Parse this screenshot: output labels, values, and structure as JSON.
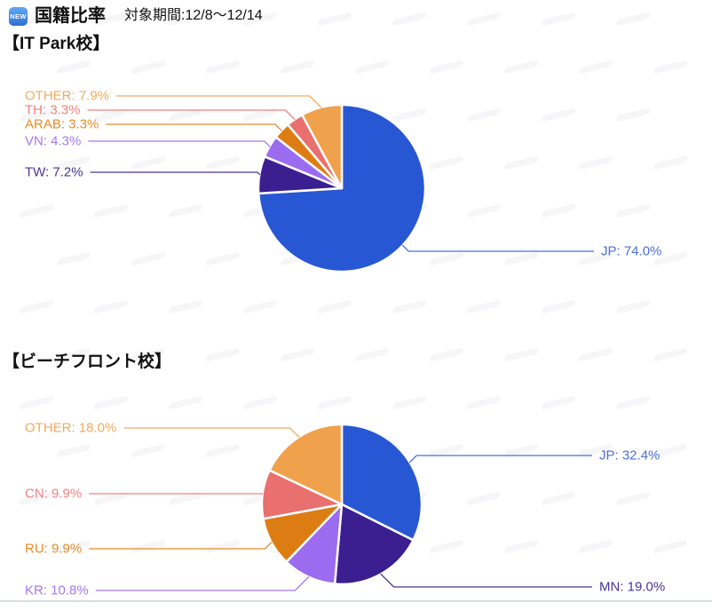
{
  "page": {
    "header": {
      "badge": "NEW",
      "title": "国籍比率",
      "period": "対象期間:12/8～12/14"
    }
  },
  "chart_data": [
    {
      "type": "pie",
      "title": "【IT Park校】",
      "unit": "%",
      "start_angle_deg": 0,
      "direction": "clockwise",
      "legend_position": "outside-callouts",
      "slices": [
        {
          "label": "JP",
          "value": 74.0,
          "color": "#2857d4",
          "label_color": "#4a6fd8"
        },
        {
          "label": "TW",
          "value": 7.2,
          "color": "#3b1e8f",
          "label_color": "#4a3598"
        },
        {
          "label": "VN",
          "value": 4.3,
          "color": "#9c6cf0",
          "label_color": "#a478f2"
        },
        {
          "label": "ARAB",
          "value": 3.3,
          "color": "#de7c14",
          "label_color": "#e78b28"
        },
        {
          "label": "TH",
          "value": 3.3,
          "color": "#ea6f6f",
          "label_color": "#ef827f"
        },
        {
          "label": "OTHER",
          "value": 7.9,
          "color": "#f0a14c",
          "label_color": "#f2aa5e"
        }
      ]
    },
    {
      "type": "pie",
      "title": "【ビーチフロント校】",
      "unit": "%",
      "start_angle_deg": 0,
      "direction": "clockwise",
      "legend_position": "outside-callouts",
      "slices": [
        {
          "label": "JP",
          "value": 32.4,
          "color": "#2857d4",
          "label_color": "#4a6fd8"
        },
        {
          "label": "MN",
          "value": 19.0,
          "color": "#3b1e8f",
          "label_color": "#4a3598"
        },
        {
          "label": "KR",
          "value": 10.8,
          "color": "#9c6cf0",
          "label_color": "#a478f2"
        },
        {
          "label": "RU",
          "value": 9.9,
          "color": "#de7c14",
          "label_color": "#e78b28"
        },
        {
          "label": "CN",
          "value": 9.9,
          "color": "#ea6f6f",
          "label_color": "#ef827f"
        },
        {
          "label": "OTHER",
          "value": 18.0,
          "color": "#f0a14c",
          "label_color": "#f2aa5e"
        }
      ]
    }
  ]
}
